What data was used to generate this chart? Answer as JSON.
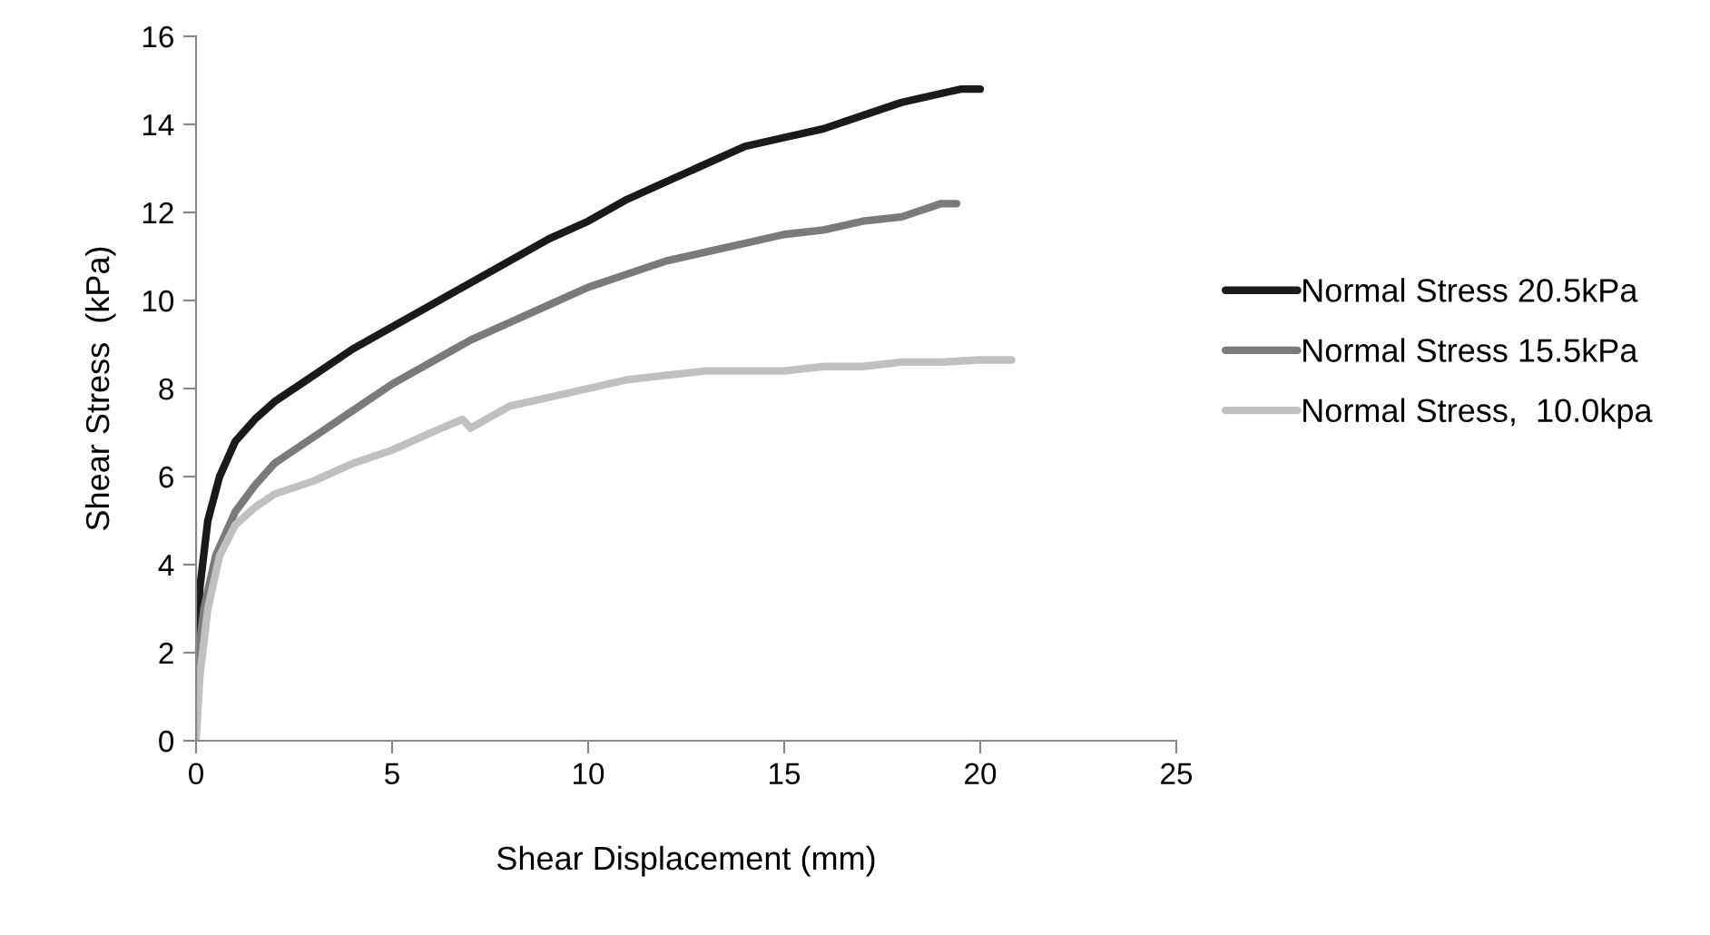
{
  "chart_data": {
    "type": "line",
    "xlabel": "Shear Displacement (mm)",
    "ylabel": "Shear Stress  (kPa)",
    "xlim": [
      0,
      25
    ],
    "xticks": [
      0,
      5,
      10,
      15,
      20,
      25
    ],
    "ylim": [
      0,
      16
    ],
    "yticks": [
      0,
      2,
      4,
      6,
      8,
      10,
      12,
      14,
      16
    ],
    "grid": false,
    "legend": "right",
    "marker": "none",
    "line_style": "solid",
    "series": [
      {
        "name": "Normal Stress 20.5kPa",
        "color": "#1a1a1a",
        "x": [
          0,
          0.1,
          0.3,
          0.6,
          1,
          1.5,
          2,
          3,
          4,
          5,
          6,
          7,
          8,
          9,
          10,
          11,
          12,
          13,
          14,
          15,
          16,
          17,
          18,
          19,
          19.5,
          20
        ],
        "values": [
          2,
          3.5,
          5,
          6,
          6.8,
          7.3,
          7.7,
          8.3,
          8.9,
          9.4,
          9.9,
          10.4,
          10.9,
          11.4,
          11.8,
          12.3,
          12.7,
          13.1,
          13.5,
          13.7,
          13.9,
          14.2,
          14.5,
          14.7,
          14.8,
          14.8
        ]
      },
      {
        "name": "Normal Stress 15.5kPa",
        "color": "#7a7a7a",
        "x": [
          0,
          0.2,
          0.5,
          1,
          1.5,
          2,
          3,
          4,
          5,
          6,
          7,
          8,
          9,
          10,
          11,
          12,
          13,
          14,
          15,
          16,
          17,
          18,
          19,
          19.4
        ],
        "values": [
          1.5,
          3,
          4.2,
          5.2,
          5.8,
          6.3,
          6.9,
          7.5,
          8.1,
          8.6,
          9.1,
          9.5,
          9.9,
          10.3,
          10.6,
          10.9,
          11.1,
          11.3,
          11.5,
          11.6,
          11.8,
          11.9,
          12.2,
          12.2
        ]
      },
      {
        "name": "Normal Stress,  10.0kpa",
        "color": "#c0c0c0",
        "x": [
          0,
          0.1,
          0.3,
          0.6,
          1,
          1.5,
          2,
          3,
          4,
          5,
          6,
          6.8,
          7,
          8,
          9,
          10,
          11,
          12,
          13,
          14,
          15,
          16,
          17,
          18,
          19,
          20,
          20.8
        ],
        "values": [
          0,
          1.5,
          3,
          4.2,
          4.9,
          5.3,
          5.6,
          5.9,
          6.3,
          6.6,
          7.0,
          7.3,
          7.1,
          7.6,
          7.8,
          8.0,
          8.2,
          8.3,
          8.4,
          8.4,
          8.4,
          8.5,
          8.5,
          8.6,
          8.6,
          8.65,
          8.65
        ]
      }
    ]
  }
}
